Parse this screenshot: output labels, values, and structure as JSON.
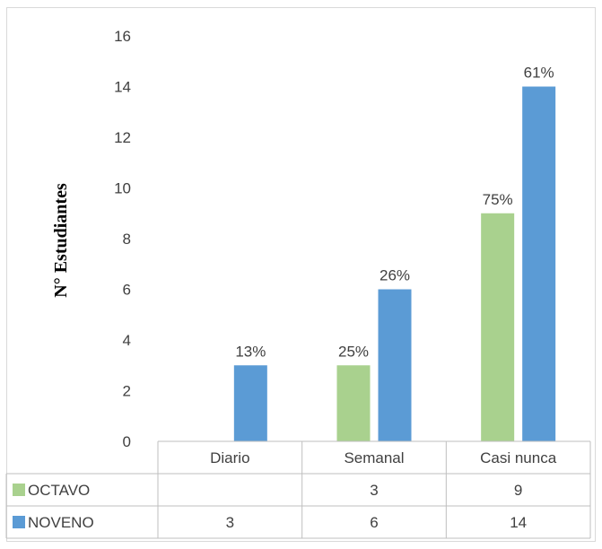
{
  "chart_data": {
    "type": "bar",
    "ylabel": "N° Estudiantes",
    "ylim": [
      0,
      16
    ],
    "yticks": [
      0,
      2,
      4,
      6,
      8,
      10,
      12,
      14,
      16
    ],
    "grid": false,
    "legend": "data-table",
    "categories": [
      "Diario",
      "Semanal",
      "Casi nunca"
    ],
    "series": [
      {
        "name": "OCTAVO",
        "color": "#a9d18e",
        "values": [
          null,
          3,
          9
        ],
        "labels": [
          "",
          "25%",
          "75%"
        ],
        "table_values": [
          "",
          "3",
          "9"
        ]
      },
      {
        "name": "NOVENO",
        "color": "#5b9bd5",
        "values": [
          3,
          6,
          14
        ],
        "labels": [
          "13%",
          "26%",
          "61%"
        ],
        "table_values": [
          "3",
          "6",
          "14"
        ]
      }
    ]
  }
}
